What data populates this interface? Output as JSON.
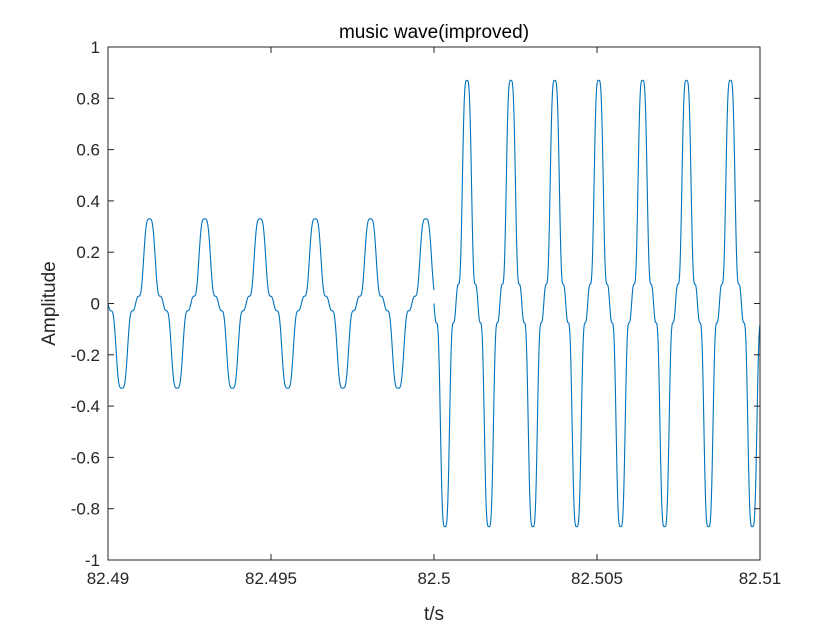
{
  "chart_data": {
    "type": "line",
    "title": "music wave(improved)",
    "xlabel": "t/s",
    "ylabel": "Amplitude",
    "xlim": [
      82.49,
      82.51
    ],
    "ylim": [
      -1,
      1
    ],
    "x_ticks": [
      82.49,
      82.495,
      82.5,
      82.505,
      82.51
    ],
    "x_tick_labels": [
      "82.49",
      "82.495",
      "82.5",
      "82.505",
      "82.51"
    ],
    "y_ticks": [
      -1,
      -0.8,
      -0.6,
      -0.4,
      -0.2,
      0,
      0.2,
      0.4,
      0.6,
      0.8,
      1
    ],
    "y_tick_labels": [
      "-1",
      "-0.8",
      "-0.6",
      "-0.4",
      "-0.2",
      "0",
      "0.2",
      "0.4",
      "0.6",
      "0.8",
      "1"
    ],
    "grid": false,
    "legend": "none",
    "line_color": "#0072BD",
    "series": [
      {
        "segments": [
          {
            "x_start": 82.49,
            "x_end": 82.5,
            "peak_amplitude": 0.33,
            "period": 0.001695
          },
          {
            "x_start": 82.5,
            "x_end": 82.51,
            "peak_amplitude": 0.87,
            "period": 0.001347
          }
        ]
      }
    ]
  }
}
